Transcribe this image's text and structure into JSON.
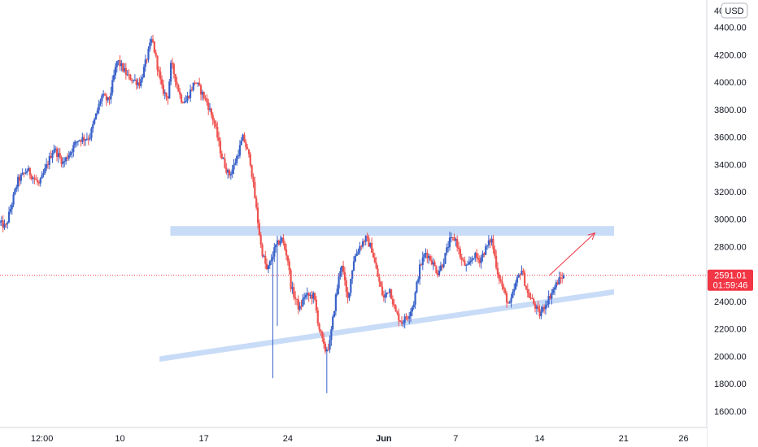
{
  "chart_data": {
    "type": "candlestick",
    "currency": "USD",
    "last_price": "2591.01",
    "countdown": "01:59:46",
    "ylim": [
      1480,
      4600
    ],
    "y_ticks": [
      "4400.00",
      "4200.00",
      "4000.00",
      "3800.00",
      "3600.00",
      "3400.00",
      "3200.00",
      "3000.00",
      "2800.00",
      "2600.00",
      "2400.00",
      "2200.00",
      "2000.00",
      "1800.00",
      "1600.00"
    ],
    "y_tick_values": [
      4400,
      4200,
      4000,
      3800,
      3600,
      3400,
      3200,
      3000,
      2800,
      2600,
      2400,
      2200,
      2000,
      1800,
      1600
    ],
    "partial_top_tick": "40",
    "x_ticks": [
      "12:00",
      "10",
      "17",
      "24",
      "Jun",
      "7",
      "14",
      "21",
      "26"
    ],
    "x_tick_days": [
      3.5,
      10,
      17,
      24,
      32,
      38,
      45,
      52,
      57
    ],
    "x_range_days": [
      0,
      63
    ],
    "bar_days": 0.125,
    "colors": {
      "up": "#3861c9",
      "down": "#ef5350",
      "zone": "#c9dcf7",
      "price_line": "#f23645",
      "projection": "#f23645",
      "axis_text": "#131722"
    },
    "resistance_zone": {
      "y_low": 2880,
      "y_high": 2950,
      "x_start_day": 14.2,
      "x_end_day": 51.2
    },
    "support_channel": {
      "start": {
        "day": 13.3,
        "price": 1980
      },
      "end": {
        "day": 51.2,
        "price": 2470
      },
      "band": 40
    },
    "projection_arrow": {
      "start": {
        "day": 45.8,
        "price": 2590
      },
      "end": {
        "day": 49.6,
        "price": 2900
      }
    },
    "anchors": [
      [
        0,
        2980
      ],
      [
        0.6,
        2940
      ],
      [
        1.6,
        3280
      ],
      [
        2.4,
        3360
      ],
      [
        3.4,
        3250
      ],
      [
        4.6,
        3520
      ],
      [
        5.4,
        3410
      ],
      [
        6.6,
        3580
      ],
      [
        7.6,
        3600
      ],
      [
        8.6,
        3900
      ],
      [
        9.2,
        3860
      ],
      [
        9.9,
        4160
      ],
      [
        10.8,
        4040
      ],
      [
        11.8,
        3990
      ],
      [
        12.8,
        4320
      ],
      [
        13.6,
        3960
      ],
      [
        14.1,
        3880
      ],
      [
        14.4,
        4140
      ],
      [
        15.2,
        3880
      ],
      [
        15.6,
        3860
      ],
      [
        16.4,
        4010
      ],
      [
        17.4,
        3850
      ],
      [
        18.0,
        3700
      ],
      [
        18.6,
        3460
      ],
      [
        19.2,
        3320
      ],
      [
        19.6,
        3380
      ],
      [
        20.4,
        3600
      ],
      [
        21.0,
        3420
      ],
      [
        21.4,
        3140
      ],
      [
        21.9,
        2790
      ],
      [
        22.4,
        2620
      ],
      [
        23.1,
        2800
      ],
      [
        23.6,
        2860
      ],
      [
        24.1,
        2720
      ],
      [
        24.4,
        2500
      ],
      [
        25.1,
        2340
      ],
      [
        25.5,
        2440
      ],
      [
        26.3,
        2440
      ],
      [
        26.7,
        2220
      ],
      [
        27.2,
        2040
      ],
      [
        27.6,
        2080
      ],
      [
        28.1,
        2420
      ],
      [
        28.6,
        2690
      ],
      [
        29.1,
        2400
      ],
      [
        29.6,
        2700
      ],
      [
        30.1,
        2800
      ],
      [
        30.6,
        2860
      ],
      [
        31.1,
        2790
      ],
      [
        31.6,
        2590
      ],
      [
        32.1,
        2420
      ],
      [
        32.6,
        2500
      ],
      [
        33.1,
        2320
      ],
      [
        33.6,
        2250
      ],
      [
        34.1,
        2290
      ],
      [
        34.6,
        2380
      ],
      [
        35.1,
        2640
      ],
      [
        35.6,
        2760
      ],
      [
        36.1,
        2700
      ],
      [
        36.6,
        2610
      ],
      [
        37.1,
        2690
      ],
      [
        37.6,
        2840
      ],
      [
        38.1,
        2860
      ],
      [
        38.6,
        2700
      ],
      [
        39.1,
        2640
      ],
      [
        39.6,
        2740
      ],
      [
        40.1,
        2700
      ],
      [
        40.6,
        2780
      ],
      [
        41.1,
        2860
      ],
      [
        41.6,
        2620
      ],
      [
        42.1,
        2480
      ],
      [
        42.6,
        2360
      ],
      [
        43.1,
        2520
      ],
      [
        43.6,
        2640
      ],
      [
        44.1,
        2460
      ],
      [
        44.6,
        2390
      ],
      [
        45.1,
        2300
      ],
      [
        45.6,
        2380
      ],
      [
        46.1,
        2460
      ],
      [
        46.6,
        2540
      ],
      [
        47.1,
        2591
      ]
    ]
  }
}
